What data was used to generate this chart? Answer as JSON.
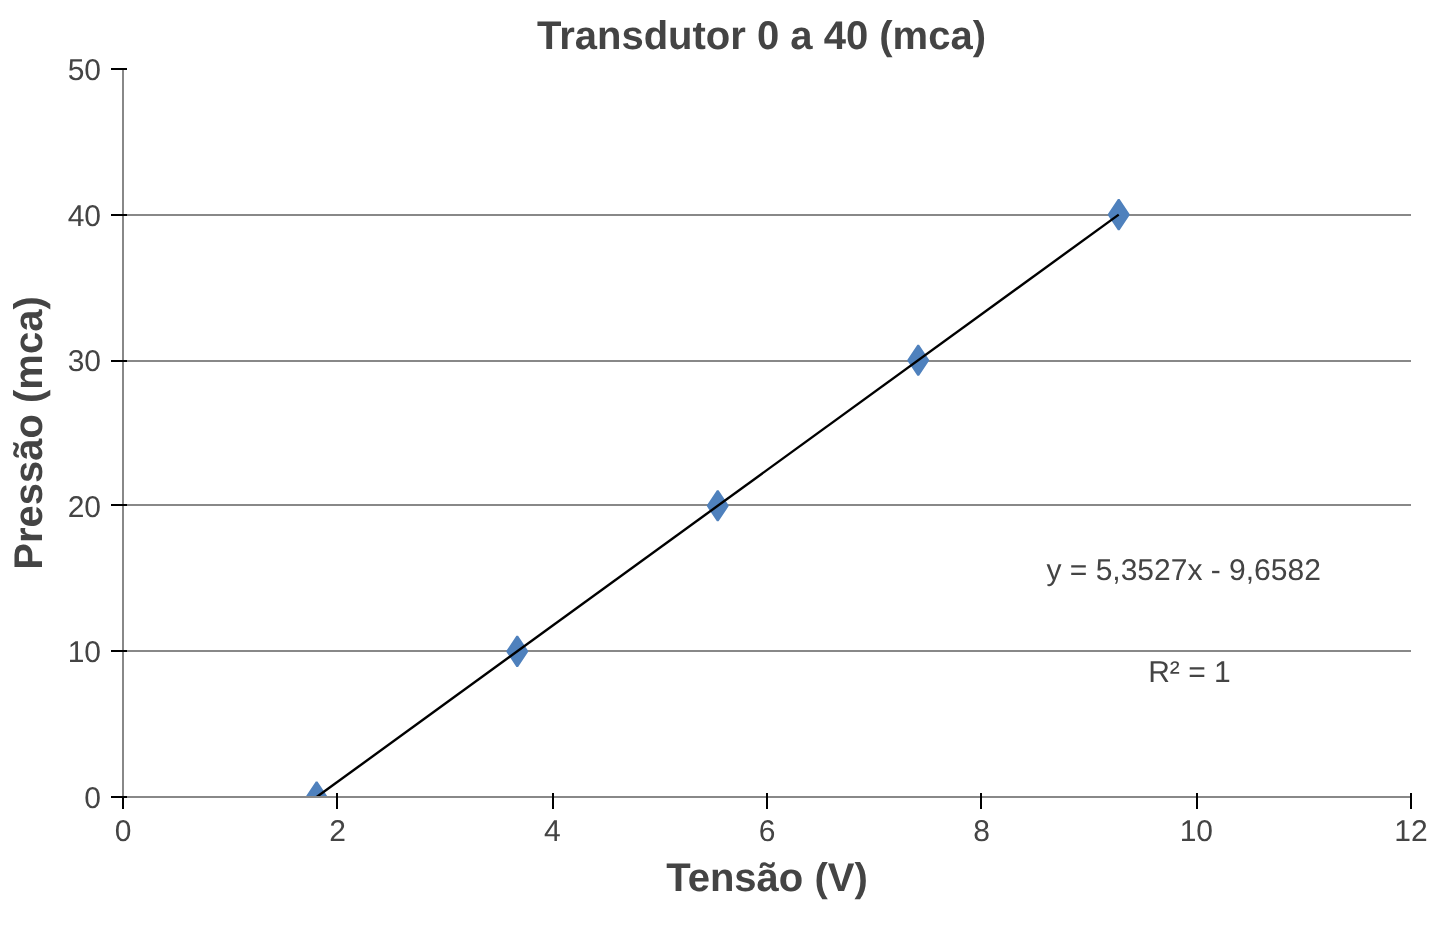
{
  "chart_data": {
    "type": "scatter",
    "title": "Transdutor  0 a 40 (mca)",
    "xlabel": "Tensão (V)",
    "ylabel": "Pressão (mca)",
    "xlim": [
      0,
      12
    ],
    "xticks": [
      0,
      2,
      4,
      6,
      8,
      10,
      12
    ],
    "ylim": [
      0,
      50
    ],
    "yticks": [
      0,
      10,
      20,
      30,
      40,
      50
    ],
    "grid": "y",
    "series": [
      {
        "marker": "diamond",
        "color": "#4f81bd",
        "x": [
          1.804,
          3.673,
          5.541,
          7.409,
          9.277
        ],
        "values": [
          0,
          10,
          20,
          30,
          40
        ]
      },
      {
        "type": "line",
        "marker": "none",
        "color": "#000000",
        "x": [
          1.804,
          9.277
        ],
        "values": [
          0,
          40
        ]
      }
    ],
    "annotations": [
      "y = 5,3527x - 9,6582",
      "R² = 1"
    ]
  }
}
